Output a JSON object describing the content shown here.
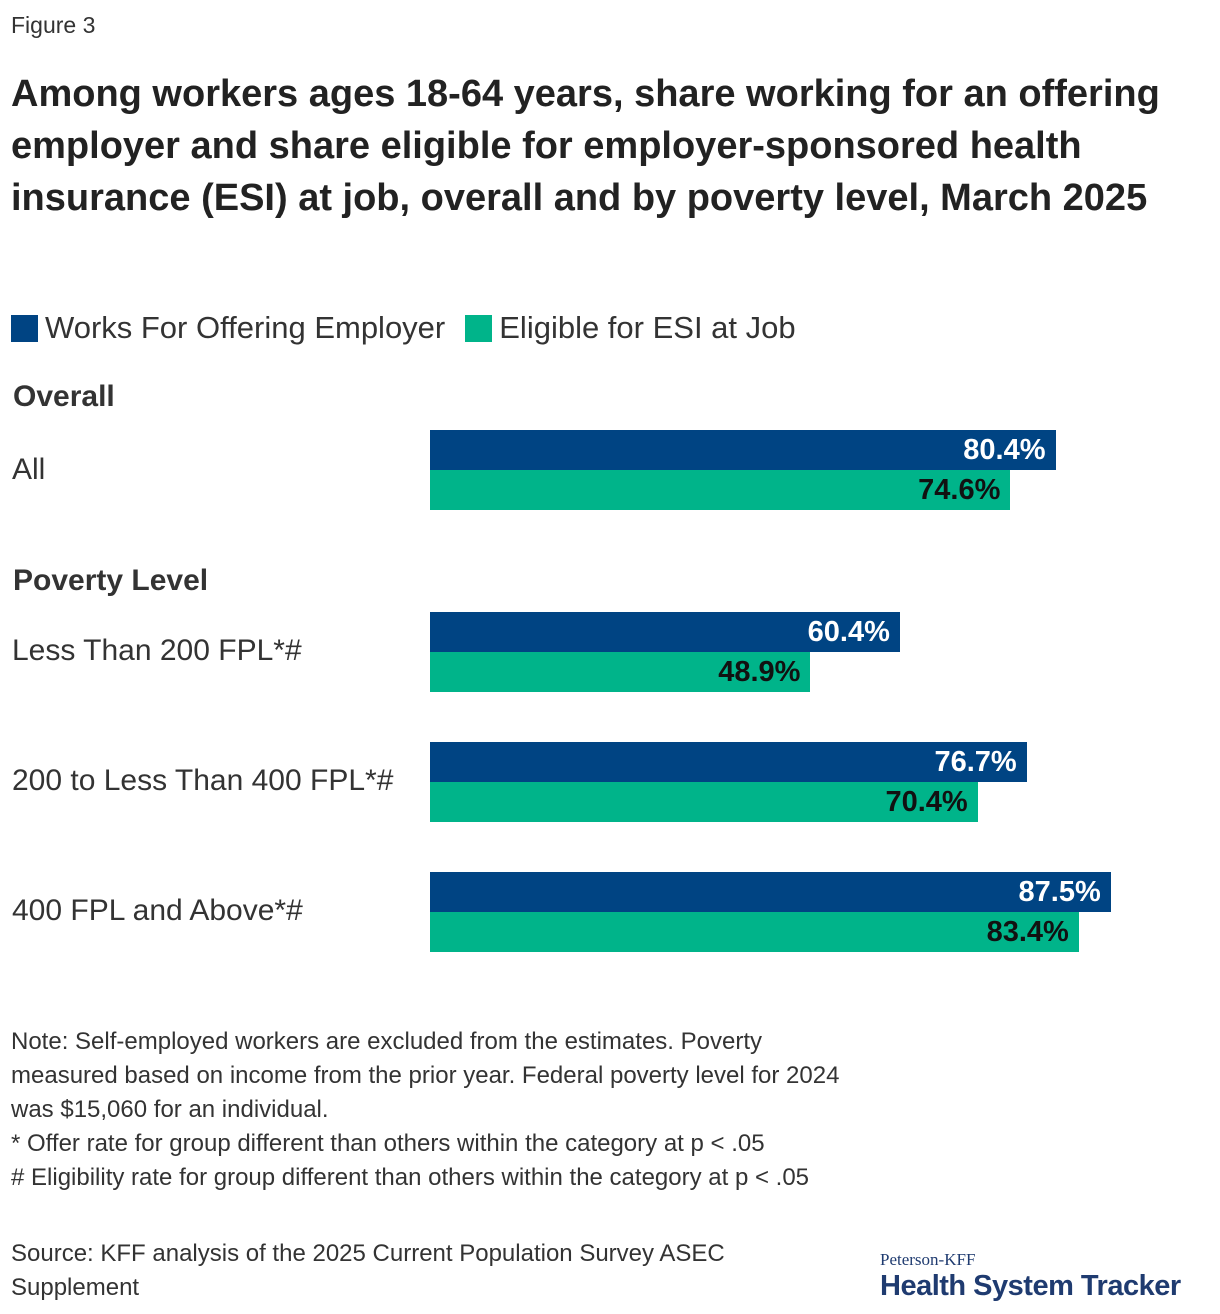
{
  "figure_label": "Figure 3",
  "colors": {
    "offer": "#004483",
    "eligible": "#00b48a",
    "offer_text": "#ffffff",
    "eligible_text": "#111111"
  },
  "chart_data": {
    "type": "bar",
    "orientation": "horizontal",
    "title": "Among workers ages 18-64 years, share working for an offering employer and share eligible for employer-sponsored health insurance (ESI) at job, overall and by poverty level, March 2025",
    "xlim": [
      0,
      100
    ],
    "legend_position": "top-left",
    "grid": false,
    "legend": [
      "Works For Offering Employer",
      "Eligible for ESI at Job"
    ],
    "groups": [
      {
        "name": "Overall",
        "categories": [
          {
            "label": "All",
            "offer": 80.4,
            "offer_label": "80.4%",
            "eligible": 74.6,
            "eligible_label": "74.6%"
          }
        ]
      },
      {
        "name": "Poverty Level",
        "categories": [
          {
            "label": "Less Than 200 FPL*#",
            "offer": 60.4,
            "offer_label": "60.4%",
            "eligible": 48.9,
            "eligible_label": "48.9%"
          },
          {
            "label": "200 to Less Than 400 FPL*#",
            "offer": 76.7,
            "offer_label": "76.7%",
            "eligible": 70.4,
            "eligible_label": "70.4%"
          },
          {
            "label": "400 FPL and Above*#",
            "offer": 87.5,
            "offer_label": "87.5%",
            "eligible": 83.4,
            "eligible_label": "83.4%"
          }
        ]
      }
    ]
  },
  "notes": {
    "line1": "Note: Self-employed workers are excluded from the estimates. Poverty measured based on income from the prior year. Federal poverty level for 2024 was $15,060 for an individual.",
    "line2": "* Offer rate for group different than others within the category at p < .05",
    "line3": "# Eligibility rate for group different than others within the category at p < .05"
  },
  "source": "Source: KFF analysis of the 2025 Current Population Survey ASEC Supplement",
  "logo": {
    "top": "Peterson-KFF",
    "main": "Health System Tracker"
  }
}
